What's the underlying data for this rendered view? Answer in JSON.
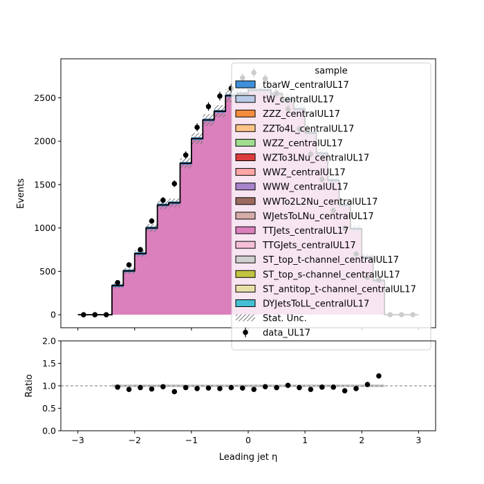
{
  "chart_data": [
    {
      "type": "stacked-histogram",
      "ylabel": "Events",
      "xlim": [
        -3.3,
        3.3
      ],
      "ylim": [
        -150,
        2950
      ],
      "yticks": [
        0,
        500,
        1000,
        1500,
        2000,
        2500
      ],
      "xticks": [
        -3,
        -2,
        -1,
        0,
        1,
        2,
        3
      ],
      "bin_edges": [
        -2.4,
        -2.2,
        -2.0,
        -1.8,
        -1.6,
        -1.4,
        -1.2,
        -1.0,
        -0.8,
        -0.6,
        -0.4,
        -0.2,
        0.0,
        0.2,
        0.4,
        0.6,
        0.8,
        1.0,
        1.2,
        1.4,
        1.6,
        1.8,
        2.0,
        2.2,
        2.4
      ],
      "mc_total": [
        335,
        505,
        705,
        1000,
        1265,
        1290,
        1745,
        2030,
        2245,
        2345,
        2525,
        2550,
        2590,
        2590,
        2545,
        2475,
        2370,
        2095,
        1860,
        1550,
        1265,
        990,
        665,
        395
      ],
      "stat_unc_rel": 0.02,
      "data_points": {
        "name": "data_UL17",
        "x": [
          -2.9,
          -2.7,
          -2.5,
          -2.3,
          -2.1,
          -1.9,
          -1.7,
          -1.5,
          -1.3,
          -1.1,
          -0.9,
          -0.7,
          -0.5,
          -0.3,
          -0.1,
          0.1,
          0.3,
          0.5,
          0.7,
          0.9,
          1.1,
          1.3,
          1.5,
          1.7,
          1.9,
          2.1,
          2.3,
          2.5,
          2.7,
          2.9
        ],
        "y": [
          0,
          0,
          0,
          370,
          575,
          750,
          1080,
          1320,
          1510,
          1840,
          2160,
          2400,
          2520,
          2610,
          2730,
          2790,
          2720,
          2550,
          2370,
          2140,
          1850,
          1560,
          1200,
          1000,
          700,
          430,
          400,
          0,
          0,
          0
        ],
        "yerr": [
          0,
          0,
          0,
          19,
          24,
          27,
          33,
          36,
          39,
          43,
          46,
          49,
          50,
          51,
          52,
          53,
          52,
          50,
          49,
          46,
          43,
          39,
          35,
          32,
          26,
          21,
          20,
          0,
          0,
          0
        ]
      },
      "legend": {
        "title": "sample",
        "placement": "upper right",
        "entries": [
          {
            "label": "tbarW_centralUL17",
            "color": "#3f90da"
          },
          {
            "label": "tW_centralUL17",
            "color": "#b9cae6"
          },
          {
            "label": "ZZZ_centralUL17",
            "color": "#f58d3c"
          },
          {
            "label": "ZZTo4L_centralUL17",
            "color": "#ffc488"
          },
          {
            "label": "WZZ_centralUL17",
            "color": "#9fdc8f"
          },
          {
            "label": "WZTo3LNu_centralUL17",
            "color": "#db3d3d"
          },
          {
            "label": "WWZ_centralUL17",
            "color": "#ffa6a6"
          },
          {
            "label": "WWW_centralUL17",
            "color": "#a884cc"
          },
          {
            "label": "WWTo2L2Nu_centralUL17",
            "color": "#9a6a60"
          },
          {
            "label": "WJetsToLNu_centralUL17",
            "color": "#d5aca8"
          },
          {
            "label": "TTJets_centralUL17",
            "color": "#db7fbd"
          },
          {
            "label": "TTGJets_centralUL17",
            "color": "#f6bfd8"
          },
          {
            "label": "ST_top_t-channel_centralUL17",
            "color": "#d0d0d0"
          },
          {
            "label": "ST_top_s-channel_centralUL17",
            "color": "#c2c440"
          },
          {
            "label": "ST_antitop_t-channel_centralUL17",
            "color": "#e8e0a8"
          },
          {
            "label": "DYJetsToLL_centralUL17",
            "color": "#44bfd3"
          }
        ],
        "stat_label": "Stat. Unc.",
        "data_label": "data_UL17"
      }
    },
    {
      "type": "scatter",
      "xlabel": "Leading jet  η",
      "ylabel": "Ratio",
      "xlim": [
        -3.3,
        3.3
      ],
      "ylim": [
        0.0,
        2.0
      ],
      "yticks": [
        "0.0",
        "0.5",
        "1.0",
        "1.5",
        "2.0"
      ],
      "xticks": [
        "−3",
        "−2",
        "−1",
        "0",
        "1",
        "2",
        "3"
      ],
      "reference_line": 1.0,
      "x": [
        -2.3,
        -2.1,
        -1.9,
        -1.7,
        -1.5,
        -1.3,
        -1.1,
        -0.9,
        -0.7,
        -0.5,
        -0.3,
        -0.1,
        0.1,
        0.3,
        0.5,
        0.7,
        0.9,
        1.1,
        1.3,
        1.5,
        1.7,
        1.9,
        2.1,
        2.3
      ],
      "y": [
        0.97,
        0.92,
        0.96,
        0.93,
        0.98,
        0.87,
        0.96,
        0.94,
        0.95,
        0.94,
        0.96,
        0.95,
        0.92,
        0.98,
        0.96,
        1.01,
        0.96,
        0.92,
        0.97,
        0.97,
        0.89,
        0.94,
        1.03,
        1.22
      ]
    }
  ]
}
